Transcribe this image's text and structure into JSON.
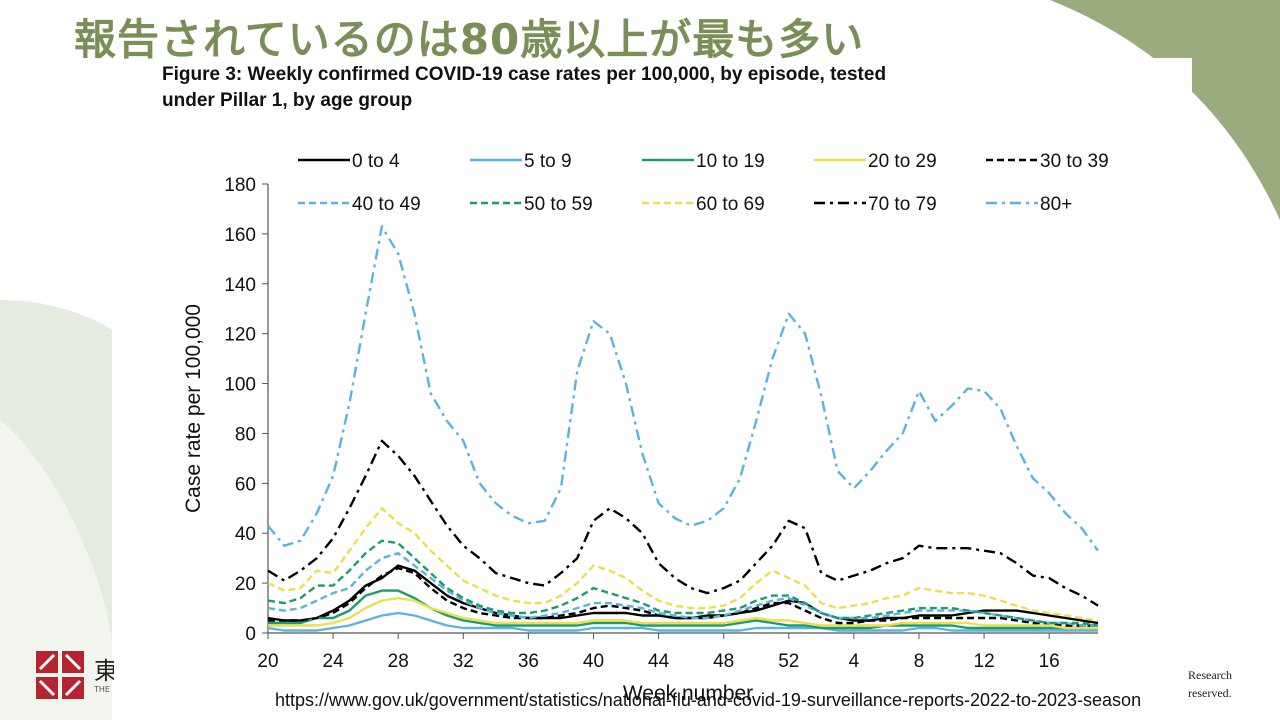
{
  "slide": {
    "title": "報告されているのは80歳以上が最も多い",
    "source_url": "https://www.gov.uk/government/statistics/national-flu-and-covid-19-surveillance-reports-2022-to-2023-season",
    "logo_text": "東",
    "logo_subtext": "THE",
    "copyright_line1": "Research",
    "copyright_line2": "reserved."
  },
  "colors": {
    "title_green": "#7a8f58",
    "black": "#000000",
    "light_blue": "#5ab4e0",
    "green": "#1a9c6e",
    "yellow": "#ecde4c"
  },
  "chart_data": {
    "type": "line",
    "title": "Figure 3: Weekly confirmed COVID-19 case rates per 100,000, by episode, tested under Pillar 1, by age group",
    "title_lines": [
      "Figure 3: Weekly confirmed COVID-19 case rates per 100,000, by episode, tested",
      "under Pillar 1, by age group"
    ],
    "xlabel": "Week number",
    "ylabel": "Case rate per 100,000",
    "ylim": [
      0,
      180
    ],
    "yticks": [
      0,
      20,
      40,
      60,
      80,
      100,
      120,
      140,
      160,
      180
    ],
    "x_tick_labels": [
      "20",
      "24",
      "28",
      "32",
      "36",
      "40",
      "44",
      "48",
      "52",
      "4",
      "8",
      "12",
      "16"
    ],
    "x_tick_index": [
      0,
      4,
      8,
      12,
      16,
      20,
      24,
      28,
      32,
      36,
      40,
      44,
      48
    ],
    "x": [
      20,
      21,
      22,
      23,
      24,
      25,
      26,
      27,
      28,
      29,
      30,
      31,
      32,
      33,
      34,
      35,
      36,
      37,
      38,
      39,
      40,
      41,
      42,
      43,
      44,
      45,
      46,
      47,
      48,
      49,
      50,
      51,
      52,
      1,
      2,
      3,
      4,
      5,
      6,
      7,
      8,
      9,
      10,
      11,
      12,
      13,
      14,
      15,
      16,
      17,
      18,
      19
    ],
    "legend_placement": "top",
    "grid": false,
    "series": [
      {
        "name": "0 to 4",
        "color": "#000000",
        "dash": "solid",
        "values": [
          6,
          5,
          5,
          6,
          9,
          13,
          19,
          22,
          27,
          25,
          20,
          15,
          12,
          10,
          8,
          7,
          6,
          6,
          6,
          7,
          8,
          8,
          8,
          7,
          7,
          6,
          6,
          7,
          7,
          8,
          9,
          11,
          13,
          12,
          8,
          6,
          5,
          5,
          6,
          6,
          7,
          7,
          7,
          8,
          9,
          9,
          9,
          8,
          7,
          6,
          5,
          4
        ]
      },
      {
        "name": "5 to 9",
        "color": "#5ab4e0",
        "dash": "solid",
        "values": [
          2,
          1,
          1,
          1,
          2,
          3,
          5,
          7,
          8,
          7,
          5,
          3,
          2,
          2,
          2,
          2,
          1,
          1,
          1,
          1,
          2,
          2,
          2,
          2,
          1,
          1,
          1,
          1,
          1,
          1,
          2,
          2,
          2,
          2,
          2,
          1,
          1,
          1,
          1,
          1,
          2,
          2,
          1,
          1,
          1,
          1,
          1,
          1,
          1,
          1,
          1,
          1
        ]
      },
      {
        "name": "10 to 19",
        "color": "#1a9c6e",
        "dash": "solid",
        "values": [
          4,
          4,
          4,
          6,
          6,
          9,
          15,
          17,
          17,
          14,
          10,
          7,
          5,
          4,
          3,
          3,
          3,
          3,
          3,
          3,
          4,
          4,
          4,
          3,
          3,
          3,
          3,
          3,
          3,
          4,
          5,
          4,
          3,
          3,
          2,
          2,
          2,
          2,
          3,
          3,
          3,
          3,
          3,
          2,
          2,
          2,
          2,
          2,
          2,
          2,
          2,
          2
        ]
      },
      {
        "name": "20 to 29",
        "color": "#ecde4c",
        "dash": "solid",
        "values": [
          3,
          3,
          3,
          3,
          4,
          6,
          10,
          13,
          14,
          13,
          10,
          8,
          6,
          5,
          4,
          4,
          4,
          4,
          4,
          4,
          5,
          5,
          5,
          4,
          4,
          4,
          4,
          4,
          4,
          5,
          6,
          5,
          5,
          4,
          3,
          3,
          3,
          3,
          3,
          4,
          4,
          4,
          4,
          4,
          3,
          3,
          3,
          3,
          3,
          2,
          2,
          2
        ]
      },
      {
        "name": "30 to 39",
        "color": "#000000",
        "dash": "dashed",
        "values": [
          5,
          5,
          5,
          6,
          8,
          12,
          18,
          23,
          26,
          24,
          18,
          13,
          10,
          8,
          7,
          6,
          6,
          6,
          7,
          8,
          10,
          11,
          10,
          9,
          7,
          6,
          6,
          6,
          7,
          8,
          10,
          12,
          12,
          9,
          6,
          4,
          4,
          5,
          5,
          6,
          6,
          6,
          6,
          6,
          6,
          6,
          5,
          4,
          4,
          3,
          3,
          3
        ]
      },
      {
        "name": "40 to 49",
        "color": "#5ab4e0",
        "dash": "dashed",
        "values": [
          10,
          9,
          10,
          13,
          16,
          18,
          25,
          30,
          32,
          27,
          22,
          17,
          13,
          10,
          8,
          7,
          6,
          7,
          8,
          10,
          12,
          12,
          11,
          10,
          8,
          7,
          6,
          6,
          7,
          9,
          11,
          13,
          14,
          11,
          8,
          6,
          6,
          6,
          7,
          8,
          9,
          9,
          9,
          9,
          8,
          7,
          6,
          5,
          4,
          4,
          3,
          3
        ]
      },
      {
        "name": "50 to 59",
        "color": "#1a9c6e",
        "dash": "dashed",
        "values": [
          13,
          12,
          14,
          19,
          19,
          25,
          32,
          37,
          36,
          30,
          24,
          18,
          14,
          11,
          9,
          8,
          8,
          9,
          11,
          14,
          18,
          16,
          14,
          12,
          9,
          8,
          8,
          8,
          9,
          10,
          13,
          15,
          15,
          12,
          8,
          6,
          6,
          7,
          8,
          9,
          10,
          10,
          10,
          9,
          8,
          7,
          6,
          5,
          4,
          4,
          4,
          3
        ]
      },
      {
        "name": "60 to 69",
        "color": "#ecde4c",
        "dash": "dashed",
        "values": [
          20,
          17,
          18,
          25,
          24,
          33,
          42,
          50,
          44,
          40,
          33,
          27,
          21,
          18,
          15,
          13,
          12,
          12,
          15,
          20,
          27,
          25,
          22,
          17,
          13,
          11,
          10,
          10,
          11,
          14,
          20,
          25,
          22,
          19,
          12,
          10,
          11,
          12,
          14,
          15,
          18,
          17,
          16,
          16,
          15,
          13,
          11,
          9,
          8,
          7,
          6,
          5
        ]
      },
      {
        "name": "70 to 79",
        "color": "#000000",
        "dash": "dashdot",
        "values": [
          25,
          21,
          25,
          30,
          38,
          50,
          63,
          77,
          71,
          63,
          53,
          43,
          35,
          30,
          24,
          22,
          20,
          19,
          24,
          30,
          45,
          50,
          46,
          40,
          28,
          22,
          18,
          16,
          18,
          21,
          28,
          35,
          45,
          42,
          24,
          21,
          23,
          25,
          28,
          30,
          35,
          34,
          34,
          34,
          33,
          32,
          28,
          23,
          22,
          18,
          15,
          11
        ]
      },
      {
        "name": "80+",
        "color": "#5ab4e0",
        "dash": "dashdot",
        "values": [
          43,
          35,
          37,
          48,
          63,
          92,
          128,
          163,
          152,
          128,
          96,
          85,
          77,
          60,
          52,
          47,
          44,
          45,
          58,
          105,
          125,
          120,
          100,
          72,
          52,
          46,
          43,
          45,
          50,
          62,
          85,
          110,
          128,
          120,
          95,
          65,
          58,
          65,
          73,
          80,
          97,
          85,
          91,
          98,
          97,
          90,
          75,
          62,
          56,
          48,
          42,
          33
        ]
      }
    ]
  }
}
